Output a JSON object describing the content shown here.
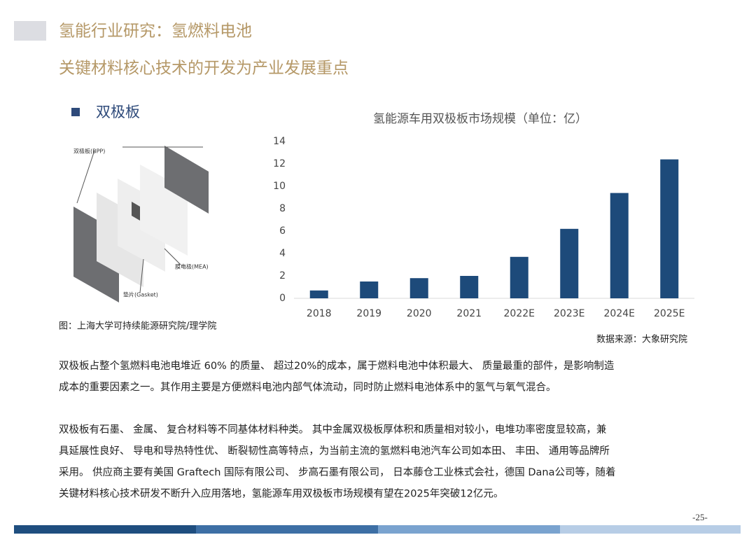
{
  "header": {
    "title": "氢能行业研究：氢燃料电池",
    "subtitle": "关键材料核心技术的开发为产业发展重点"
  },
  "section": "双极板",
  "figure": {
    "labels": [
      "双极板(BPP)",
      "膜电极(MEA)",
      "垫片(Gasket)"
    ],
    "caption": "图：上海大学可持续能源研究院/理学院"
  },
  "chart_data": {
    "type": "bar",
    "title": "氢能源车用双极板市场规模（单位：亿）",
    "categories": [
      "2018",
      "2019",
      "2020",
      "2021",
      "2022E",
      "2023E",
      "2024E",
      "2025E"
    ],
    "values": [
      0.7,
      1.5,
      1.8,
      2.0,
      3.7,
      6.2,
      9.4,
      12.4
    ],
    "color": "#1d4a7a",
    "ylim": [
      0,
      14
    ],
    "yticks": [
      0,
      2,
      4,
      6,
      8,
      10,
      12,
      14
    ],
    "grid": false,
    "source": "数据来源：大象研究院"
  },
  "paragraphs": [
    {
      "lines": [
        "双极板占整个氢燃料电池电堆近 60% 的质量、 超过20%的成本，属于燃料电池中体积最大、 质量最重的部件，是影响制造",
        "成本的重要因素之一。其作用主要是方便燃料电池内部气体流动，同时防止燃料电池体系中的氢气与氧气混合。"
      ]
    },
    {
      "lines": [
        "双极板有石墨、 金属、 复合材料等不同基体材料种类。 其中金属双极板厚体积和质量相对较小，电堆功率密度显较高，兼",
        "具延展性良好、 导电和导热特性优、 断裂韧性高等特点，为当前主流的氢燃料电池汽车公司如本田、 丰田、 通用等品牌所",
        "采用。 供应商主要有美国 Graftech 国际有限公司、 步高石墨有限公司， 日本藤仓工业株式会社，德国 Dana公司等，随着",
        "关键材料核心技术研发不断升入应用落地，氢能源车用双极板市场规模有望在2025年突破12亿元。"
      ]
    }
  ],
  "page_number": "-25-"
}
